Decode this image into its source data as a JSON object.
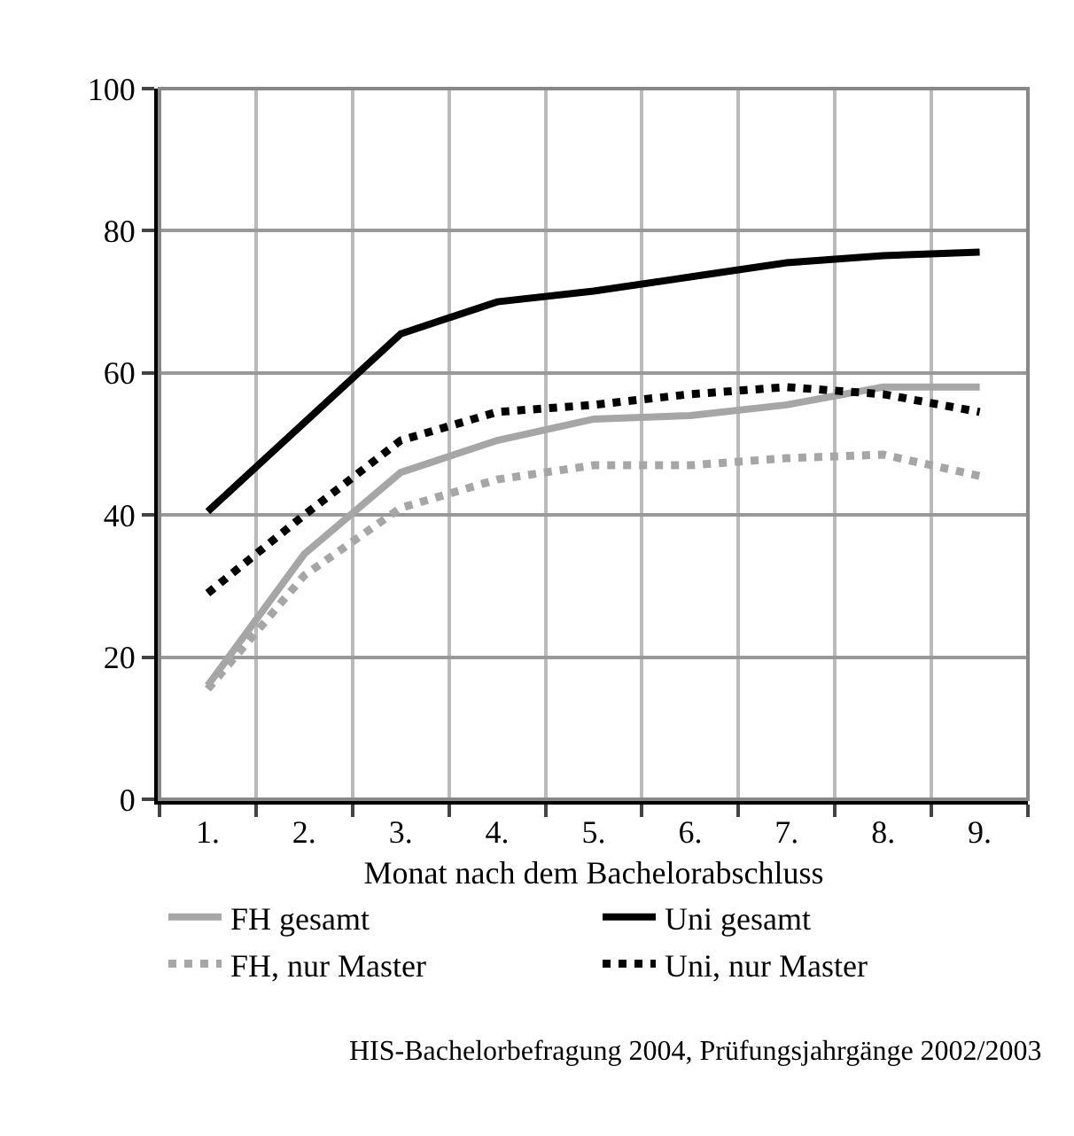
{
  "chart_data": {
    "type": "line",
    "xlabel": "Monat nach dem Bachelorabschluss",
    "categories": [
      "1.",
      "2.",
      "3.",
      "4.",
      "5.",
      "6.",
      "7.",
      "8.",
      "9."
    ],
    "series": [
      {
        "name": "FH gesamt",
        "color": "#a6a6a6",
        "line_style": "solid",
        "values": [
          16,
          34.5,
          46,
          50.5,
          53.5,
          54,
          55.5,
          58,
          58
        ]
      },
      {
        "name": "Uni gesamt",
        "color": "#000000",
        "line_style": "solid",
        "values": [
          40.5,
          53,
          65.5,
          70,
          71.5,
          73.5,
          75.5,
          76.5,
          77
        ]
      },
      {
        "name": "FH, nur Master",
        "color": "#a6a6a6",
        "line_style": "dotted",
        "values": [
          15.5,
          31.5,
          41,
          45,
          47,
          47,
          48,
          48.5,
          45.5
        ]
      },
      {
        "name": "Uni, nur Master",
        "color": "#000000",
        "line_style": "dotted",
        "values": [
          29,
          40,
          50.5,
          54.5,
          55.5,
          57,
          58,
          57,
          54.5
        ]
      }
    ],
    "ylim": [
      0,
      100
    ],
    "yticks": [
      0,
      20,
      40,
      60,
      80,
      100
    ],
    "grid": true,
    "legend": "bottom",
    "marker": "none",
    "annotations": [
      "HIS-Bachelorbefragung 2004, Prüfungsjahrgänge 2002/2003"
    ]
  }
}
